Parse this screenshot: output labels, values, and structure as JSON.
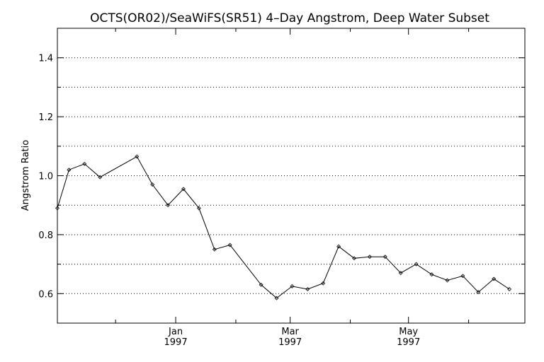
{
  "chart_data": {
    "type": "line",
    "title": "OCTS(OR02)/SeaWiFS(SR51) 4–Day Angstrom, Deep Water Subset",
    "ylabel": "Angstrom Ratio",
    "xlabel": "",
    "ylim": [
      0.5,
      1.5
    ],
    "xlim": [
      "1996-11-01",
      "1997-06-30"
    ],
    "yticks": [
      0.6,
      0.8,
      1.0,
      1.2,
      1.4
    ],
    "yticks_minor": [
      0.5,
      0.7,
      0.9,
      1.1,
      1.3,
      1.5
    ],
    "grid": true,
    "xticks": [
      {
        "date": "1997-01-01",
        "label": "Jan",
        "year": "1997"
      },
      {
        "date": "1997-03-01",
        "label": "Mar",
        "year": "1997"
      },
      {
        "date": "1997-05-01",
        "label": "May",
        "year": "1997"
      }
    ],
    "xticks_minor": [
      "1996-12-01",
      "1997-02-01",
      "1997-04-01",
      "1997-06-01"
    ],
    "series": [
      {
        "x": [
          "1996-11-01",
          "1996-11-07",
          "1996-11-15",
          "1996-11-23",
          "1996-12-12",
          "1996-12-20",
          "1996-12-28",
          "1997-01-05",
          "1997-01-13",
          "1997-01-21",
          "1997-01-29",
          "1997-02-14",
          "1997-02-22",
          "1997-03-02",
          "1997-03-10",
          "1997-03-18",
          "1997-03-26",
          "1997-04-03",
          "1997-04-11",
          "1997-04-19",
          "1997-04-27",
          "1997-05-05",
          "1997-05-13",
          "1997-05-21",
          "1997-05-29",
          "1997-06-06",
          "1997-06-14",
          "1997-06-22"
        ],
        "y": [
          0.89,
          1.02,
          1.04,
          0.995,
          1.065,
          0.97,
          0.9,
          0.955,
          0.89,
          0.75,
          0.765,
          0.63,
          0.585,
          0.625,
          0.615,
          0.635,
          0.76,
          0.72,
          0.725,
          0.725,
          0.67,
          0.7,
          0.665,
          0.645,
          0.66,
          0.605,
          0.65,
          0.615
        ]
      }
    ]
  }
}
